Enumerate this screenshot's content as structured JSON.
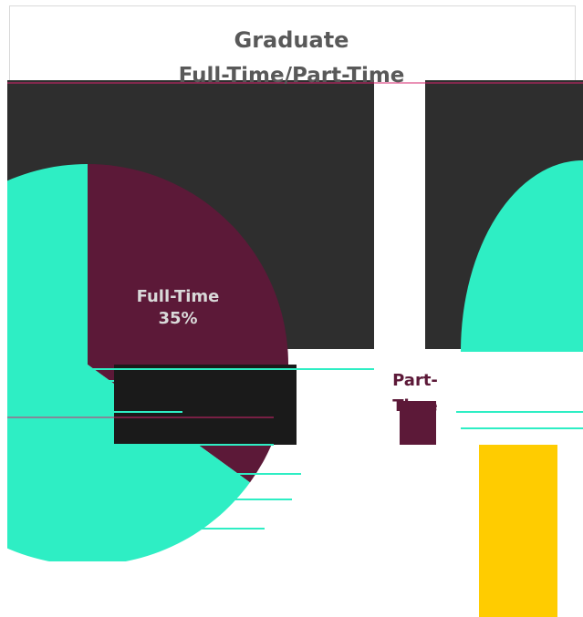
{
  "chart_data": {
    "type": "pie",
    "title": "Graduate",
    "subtitle": "Full-Time/Part-Time",
    "slices": [
      {
        "name": "Full-Time",
        "value": 35,
        "label": "35%",
        "color": "#5c1938"
      },
      {
        "name": "Part-Time",
        "value": 65,
        "label": "",
        "color": "#2eeec4"
      }
    ],
    "legend": "none"
  },
  "colors": {
    "dark_band": "#2e2e2e",
    "accent": "#ffcc00",
    "teal": "#2eeec4",
    "maroon": "#5c1938"
  }
}
